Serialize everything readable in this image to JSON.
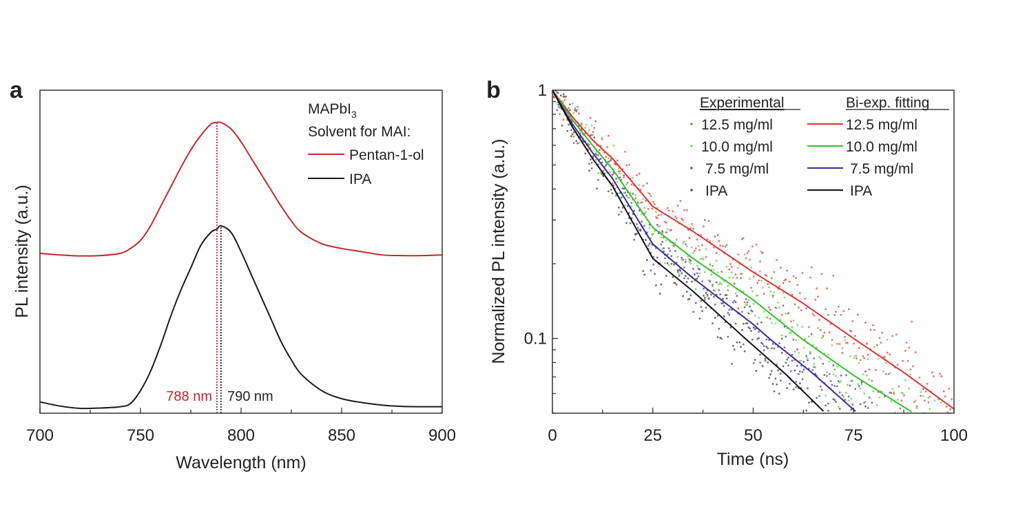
{
  "chart_data": [
    {
      "type": "line",
      "panel_label": "a",
      "xlabel": "Wavelength (nm)",
      "ylabel": "PL intensity (a.u.)",
      "xlim": [
        700,
        900
      ],
      "ylim": [
        0,
        1
      ],
      "xticks": [
        "700",
        "750",
        "800",
        "850",
        "900"
      ],
      "legend": {
        "title_main": "MAPbI",
        "title_sub": "3",
        "title2": "Solvent for MAI:",
        "placement": "top-right"
      },
      "series": [
        {
          "name": "Pentan-1-ol",
          "color": "#c0282a",
          "x": [
            700,
            710,
            720,
            730,
            740,
            745,
            750,
            755,
            760,
            765,
            770,
            775,
            780,
            785,
            788,
            790,
            795,
            800,
            805,
            810,
            815,
            820,
            825,
            830,
            840,
            850,
            860,
            870,
            880,
            890,
            900
          ],
          "y": [
            0.495,
            0.49,
            0.487,
            0.488,
            0.495,
            0.51,
            0.535,
            0.58,
            0.64,
            0.7,
            0.76,
            0.815,
            0.86,
            0.895,
            0.9,
            0.9,
            0.88,
            0.84,
            0.79,
            0.74,
            0.69,
            0.64,
            0.595,
            0.56,
            0.525,
            0.51,
            0.5,
            0.49,
            0.488,
            0.488,
            0.49
          ]
        },
        {
          "name": "IPA",
          "color": "#1a1a1a",
          "x": [
            700,
            710,
            720,
            730,
            740,
            745,
            750,
            755,
            760,
            765,
            770,
            775,
            780,
            785,
            788,
            790,
            795,
            800,
            805,
            810,
            815,
            820,
            825,
            830,
            840,
            850,
            860,
            870,
            880,
            890,
            900
          ],
          "y": [
            0.035,
            0.022,
            0.015,
            0.016,
            0.02,
            0.03,
            0.07,
            0.13,
            0.21,
            0.3,
            0.38,
            0.45,
            0.52,
            0.56,
            0.57,
            0.58,
            0.56,
            0.5,
            0.43,
            0.36,
            0.29,
            0.22,
            0.165,
            0.12,
            0.07,
            0.045,
            0.033,
            0.025,
            0.021,
            0.02,
            0.02
          ]
        }
      ],
      "annotations": [
        {
          "text": "788 nm",
          "x": 788,
          "color": "#c0282a"
        },
        {
          "text": "790 nm",
          "x": 790,
          "color": "#1a1a1a"
        }
      ]
    },
    {
      "type": "scatter",
      "panel_label": "b",
      "xlabel": "Time (ns)",
      "ylabel": "Normalized PL intensity (a.u.)",
      "xlim": [
        0,
        100
      ],
      "ylim": [
        0.05,
        1
      ],
      "yscale": "log",
      "xticks": [
        "0",
        "25",
        "50",
        "75",
        "100"
      ],
      "yticks": [
        {
          "value": 1,
          "label": "1"
        },
        {
          "value": 0.1,
          "label": "0.1"
        }
      ],
      "legend": {
        "col1_title": "Experimental",
        "col2_title": "Bi-exp. fitting",
        "placement": "top-right"
      },
      "series": [
        {
          "name": "12.5 mg/ml",
          "color": "#e0302c",
          "point_color": "#e8554f",
          "fit_t": [
            0,
            5,
            10,
            15,
            25,
            35,
            50,
            62,
            75,
            88,
            100
          ],
          "fit_y": [
            1,
            0.78,
            0.63,
            0.53,
            0.34,
            0.27,
            0.185,
            0.14,
            0.1,
            0.072,
            0.052
          ]
        },
        {
          "name": "10.0 mg/ml",
          "color": "#33c02c",
          "point_color": "#7ccf5c",
          "fit_t": [
            0,
            5,
            10,
            15,
            25,
            35,
            50,
            62,
            75,
            90
          ],
          "fit_y": [
            1,
            0.76,
            0.6,
            0.48,
            0.28,
            0.21,
            0.143,
            0.1,
            0.071,
            0.05
          ]
        },
        {
          "name": "7.5 mg/ml",
          "color": "#3a2a9a",
          "point_color": "#5a55b0",
          "fit_t": [
            0,
            5,
            10,
            15,
            25,
            35,
            50,
            54,
            65,
            76
          ],
          "fit_y": [
            1,
            0.73,
            0.56,
            0.44,
            0.24,
            0.175,
            0.114,
            0.1,
            0.072,
            0.05
          ]
        },
        {
          "name": "IPA",
          "color": "#111111",
          "point_color": "#555555",
          "fit_t": [
            0,
            5,
            10,
            15,
            25,
            35,
            48,
            58,
            68
          ],
          "fit_y": [
            1,
            0.71,
            0.53,
            0.41,
            0.21,
            0.155,
            0.1,
            0.072,
            0.05
          ]
        }
      ],
      "scatter_noise_decades": 0.07
    }
  ]
}
